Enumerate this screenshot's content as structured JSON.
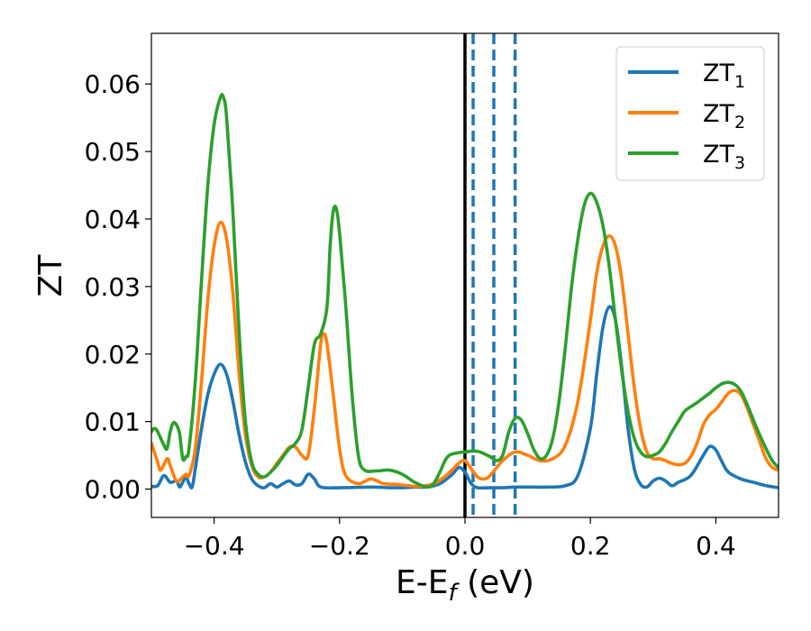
{
  "chart_data": {
    "type": "line",
    "xlabel": "E-E",
    "xlabel_sub": "f",
    "xlabel_unit": " (eV)",
    "ylabel": "ZT",
    "xlim": [
      -0.5,
      0.5
    ],
    "ylim": [
      -0.0042,
      0.0675
    ],
    "xticks": [
      -0.4,
      -0.2,
      0.0,
      0.2,
      0.4
    ],
    "xtick_labels": [
      "−0.4",
      "−0.2",
      "0.0",
      "0.2",
      "0.4"
    ],
    "yticks": [
      0.0,
      0.01,
      0.02,
      0.03,
      0.04,
      0.05,
      0.06
    ],
    "ytick_labels": [
      "0.00",
      "0.01",
      "0.02",
      "0.03",
      "0.04",
      "0.05",
      "0.06"
    ],
    "grid": false,
    "legend_position": "top-right",
    "fermi_line": {
      "x": 0.0,
      "color": "#000000"
    },
    "dashed_lines": {
      "x": [
        0.013,
        0.046,
        0.08
      ],
      "color": "#1f77b4"
    },
    "series": [
      {
        "name": "ZT",
        "name_sub": "1",
        "color": "#1f77b4",
        "points": [
          [
            -0.5,
            0.0004
          ],
          [
            -0.49,
            0.0005
          ],
          [
            -0.48,
            0.002
          ],
          [
            -0.47,
            0.001
          ],
          [
            -0.46,
            0.0012
          ],
          [
            -0.455,
            0.0003
          ],
          [
            -0.45,
            0.001
          ],
          [
            -0.445,
            0.0018
          ],
          [
            -0.44,
            0.0008
          ],
          [
            -0.435,
            0.0003
          ],
          [
            -0.43,
            0.003
          ],
          [
            -0.42,
            0.009
          ],
          [
            -0.41,
            0.014
          ],
          [
            -0.4,
            0.017
          ],
          [
            -0.39,
            0.0185
          ],
          [
            -0.38,
            0.017
          ],
          [
            -0.37,
            0.013
          ],
          [
            -0.36,
            0.008
          ],
          [
            -0.35,
            0.004
          ],
          [
            -0.34,
            0.0015
          ],
          [
            -0.33,
            0.0005
          ],
          [
            -0.32,
            0.0002
          ],
          [
            -0.31,
            0.0008
          ],
          [
            -0.3,
            0.0003
          ],
          [
            -0.29,
            0.0008
          ],
          [
            -0.28,
            0.0012
          ],
          [
            -0.27,
            0.0006
          ],
          [
            -0.26,
            0.0008
          ],
          [
            -0.25,
            0.0022
          ],
          [
            -0.24,
            0.0015
          ],
          [
            -0.23,
            0.0003
          ],
          [
            -0.2,
            0.0002
          ],
          [
            -0.15,
            0.0003
          ],
          [
            -0.12,
            0.0002
          ],
          [
            -0.1,
            0.0002
          ],
          [
            -0.08,
            0.0003
          ],
          [
            -0.06,
            0.0003
          ],
          [
            -0.04,
            0.0008
          ],
          [
            -0.02,
            0.0022
          ],
          [
            -0.01,
            0.0032
          ],
          [
            0.0,
            0.0025
          ],
          [
            0.01,
            0.0008
          ],
          [
            0.02,
            0.0002
          ],
          [
            0.04,
            0.0002
          ],
          [
            0.06,
            0.0002
          ],
          [
            0.08,
            0.0003
          ],
          [
            0.1,
            0.0003
          ],
          [
            0.13,
            0.0003
          ],
          [
            0.16,
            0.0005
          ],
          [
            0.18,
            0.002
          ],
          [
            0.2,
            0.009
          ],
          [
            0.21,
            0.017
          ],
          [
            0.22,
            0.024
          ],
          [
            0.23,
            0.027
          ],
          [
            0.24,
            0.025
          ],
          [
            0.25,
            0.018
          ],
          [
            0.26,
            0.009
          ],
          [
            0.27,
            0.003
          ],
          [
            0.28,
            0.0007
          ],
          [
            0.29,
            0.0003
          ],
          [
            0.3,
            0.0012
          ],
          [
            0.31,
            0.0016
          ],
          [
            0.32,
            0.0012
          ],
          [
            0.33,
            0.0005
          ],
          [
            0.34,
            0.001
          ],
          [
            0.36,
            0.002
          ],
          [
            0.38,
            0.005
          ],
          [
            0.39,
            0.0063
          ],
          [
            0.4,
            0.0058
          ],
          [
            0.41,
            0.004
          ],
          [
            0.42,
            0.0025
          ],
          [
            0.44,
            0.0015
          ],
          [
            0.46,
            0.001
          ],
          [
            0.48,
            0.0005
          ],
          [
            0.5,
            0.0002
          ]
        ]
      },
      {
        "name": "ZT",
        "name_sub": "2",
        "color": "#ff7f0e",
        "points": [
          [
            -0.5,
            0.0068
          ],
          [
            -0.49,
            0.004
          ],
          [
            -0.485,
            0.0028
          ],
          [
            -0.475,
            0.0045
          ],
          [
            -0.47,
            0.0035
          ],
          [
            -0.46,
            0.0012
          ],
          [
            -0.45,
            0.0018
          ],
          [
            -0.445,
            0.0022
          ],
          [
            -0.44,
            0.002
          ],
          [
            -0.43,
            0.006
          ],
          [
            -0.42,
            0.016
          ],
          [
            -0.41,
            0.028
          ],
          [
            -0.4,
            0.036
          ],
          [
            -0.39,
            0.0395
          ],
          [
            -0.38,
            0.037
          ],
          [
            -0.37,
            0.029
          ],
          [
            -0.36,
            0.017
          ],
          [
            -0.35,
            0.008
          ],
          [
            -0.34,
            0.0035
          ],
          [
            -0.33,
            0.0018
          ],
          [
            -0.32,
            0.0018
          ],
          [
            -0.31,
            0.0025
          ],
          [
            -0.3,
            0.0038
          ],
          [
            -0.29,
            0.005
          ],
          [
            -0.28,
            0.0062
          ],
          [
            -0.27,
            0.0062
          ],
          [
            -0.26,
            0.005
          ],
          [
            -0.25,
            0.005
          ],
          [
            -0.24,
            0.012
          ],
          [
            -0.23,
            0.0215
          ],
          [
            -0.225,
            0.023
          ],
          [
            -0.22,
            0.0215
          ],
          [
            -0.21,
            0.014
          ],
          [
            -0.2,
            0.006
          ],
          [
            -0.19,
            0.002
          ],
          [
            -0.17,
            0.0008
          ],
          [
            -0.15,
            0.0015
          ],
          [
            -0.13,
            0.0008
          ],
          [
            -0.11,
            0.0007
          ],
          [
            -0.09,
            0.0005
          ],
          [
            -0.07,
            0.0004
          ],
          [
            -0.05,
            0.0008
          ],
          [
            -0.03,
            0.002
          ],
          [
            -0.01,
            0.0038
          ],
          [
            0.0,
            0.0042
          ],
          [
            0.01,
            0.003
          ],
          [
            0.02,
            0.0018
          ],
          [
            0.03,
            0.0015
          ],
          [
            0.04,
            0.002
          ],
          [
            0.06,
            0.0042
          ],
          [
            0.08,
            0.0055
          ],
          [
            0.1,
            0.005
          ],
          [
            0.12,
            0.0042
          ],
          [
            0.14,
            0.0045
          ],
          [
            0.16,
            0.0065
          ],
          [
            0.18,
            0.013
          ],
          [
            0.2,
            0.025
          ],
          [
            0.21,
            0.032
          ],
          [
            0.22,
            0.036
          ],
          [
            0.23,
            0.0375
          ],
          [
            0.24,
            0.036
          ],
          [
            0.25,
            0.031
          ],
          [
            0.26,
            0.023
          ],
          [
            0.27,
            0.015
          ],
          [
            0.28,
            0.009
          ],
          [
            0.29,
            0.0055
          ],
          [
            0.3,
            0.0045
          ],
          [
            0.31,
            0.0045
          ],
          [
            0.32,
            0.0042
          ],
          [
            0.33,
            0.0038
          ],
          [
            0.34,
            0.0036
          ],
          [
            0.35,
            0.0038
          ],
          [
            0.36,
            0.0048
          ],
          [
            0.37,
            0.0068
          ],
          [
            0.38,
            0.0095
          ],
          [
            0.39,
            0.011
          ],
          [
            0.4,
            0.0118
          ],
          [
            0.41,
            0.013
          ],
          [
            0.42,
            0.0142
          ],
          [
            0.43,
            0.0146
          ],
          [
            0.44,
            0.014
          ],
          [
            0.45,
            0.012
          ],
          [
            0.46,
            0.0095
          ],
          [
            0.47,
            0.007
          ],
          [
            0.48,
            0.0045
          ],
          [
            0.49,
            0.0032
          ],
          [
            0.5,
            0.0028
          ]
        ]
      },
      {
        "name": "ZT",
        "name_sub": "3",
        "color": "#2ca02c",
        "points": [
          [
            -0.5,
            0.0085
          ],
          [
            -0.495,
            0.009
          ],
          [
            -0.49,
            0.0085
          ],
          [
            -0.48,
            0.0065
          ],
          [
            -0.475,
            0.006
          ],
          [
            -0.47,
            0.0085
          ],
          [
            -0.465,
            0.0098
          ],
          [
            -0.46,
            0.0095
          ],
          [
            -0.455,
            0.0082
          ],
          [
            -0.45,
            0.0045
          ],
          [
            -0.445,
            0.0048
          ],
          [
            -0.44,
            0.006
          ],
          [
            -0.43,
            0.016
          ],
          [
            -0.42,
            0.031
          ],
          [
            -0.41,
            0.045
          ],
          [
            -0.4,
            0.054
          ],
          [
            -0.39,
            0.058
          ],
          [
            -0.385,
            0.058
          ],
          [
            -0.38,
            0.055
          ],
          [
            -0.37,
            0.041
          ],
          [
            -0.36,
            0.023
          ],
          [
            -0.35,
            0.01
          ],
          [
            -0.34,
            0.004
          ],
          [
            -0.33,
            0.0022
          ],
          [
            -0.32,
            0.0018
          ],
          [
            -0.31,
            0.0025
          ],
          [
            -0.3,
            0.0035
          ],
          [
            -0.29,
            0.0048
          ],
          [
            -0.28,
            0.006
          ],
          [
            -0.27,
            0.0068
          ],
          [
            -0.26,
            0.0088
          ],
          [
            -0.25,
            0.015
          ],
          [
            -0.24,
            0.0215
          ],
          [
            -0.23,
            0.023
          ],
          [
            -0.22,
            0.027
          ],
          [
            -0.215,
            0.036
          ],
          [
            -0.21,
            0.0412
          ],
          [
            -0.205,
            0.0415
          ],
          [
            -0.2,
            0.038
          ],
          [
            -0.19,
            0.027
          ],
          [
            -0.18,
            0.014
          ],
          [
            -0.17,
            0.005
          ],
          [
            -0.16,
            0.0028
          ],
          [
            -0.14,
            0.0027
          ],
          [
            -0.12,
            0.0028
          ],
          [
            -0.1,
            0.0022
          ],
          [
            -0.08,
            0.001
          ],
          [
            -0.06,
            0.0003
          ],
          [
            -0.05,
            0.0008
          ],
          [
            -0.04,
            0.0025
          ],
          [
            -0.03,
            0.0045
          ],
          [
            -0.02,
            0.0052
          ],
          [
            0.0,
            0.0055
          ],
          [
            0.02,
            0.0056
          ],
          [
            0.04,
            0.0048
          ],
          [
            0.05,
            0.0042
          ],
          [
            0.06,
            0.005
          ],
          [
            0.07,
            0.0085
          ],
          [
            0.08,
            0.0105
          ],
          [
            0.09,
            0.0102
          ],
          [
            0.1,
            0.0082
          ],
          [
            0.11,
            0.0058
          ],
          [
            0.12,
            0.0045
          ],
          [
            0.13,
            0.005
          ],
          [
            0.14,
            0.0075
          ],
          [
            0.15,
            0.013
          ],
          [
            0.16,
            0.021
          ],
          [
            0.17,
            0.03
          ],
          [
            0.18,
            0.037
          ],
          [
            0.19,
            0.042
          ],
          [
            0.2,
            0.0438
          ],
          [
            0.21,
            0.0425
          ],
          [
            0.22,
            0.039
          ],
          [
            0.23,
            0.033
          ],
          [
            0.24,
            0.025
          ],
          [
            0.25,
            0.0175
          ],
          [
            0.26,
            0.0115
          ],
          [
            0.27,
            0.0075
          ],
          [
            0.28,
            0.0055
          ],
          [
            0.29,
            0.0048
          ],
          [
            0.3,
            0.005
          ],
          [
            0.31,
            0.0055
          ],
          [
            0.32,
            0.0068
          ],
          [
            0.33,
            0.0085
          ],
          [
            0.34,
            0.01
          ],
          [
            0.35,
            0.0115
          ],
          [
            0.36,
            0.0122
          ],
          [
            0.37,
            0.0128
          ],
          [
            0.38,
            0.0135
          ],
          [
            0.39,
            0.0142
          ],
          [
            0.4,
            0.015
          ],
          [
            0.41,
            0.0156
          ],
          [
            0.42,
            0.0158
          ],
          [
            0.43,
            0.0155
          ],
          [
            0.44,
            0.0145
          ],
          [
            0.45,
            0.0125
          ],
          [
            0.46,
            0.0102
          ],
          [
            0.47,
            0.008
          ],
          [
            0.48,
            0.006
          ],
          [
            0.49,
            0.0042
          ],
          [
            0.5,
            0.0032
          ]
        ]
      }
    ]
  }
}
